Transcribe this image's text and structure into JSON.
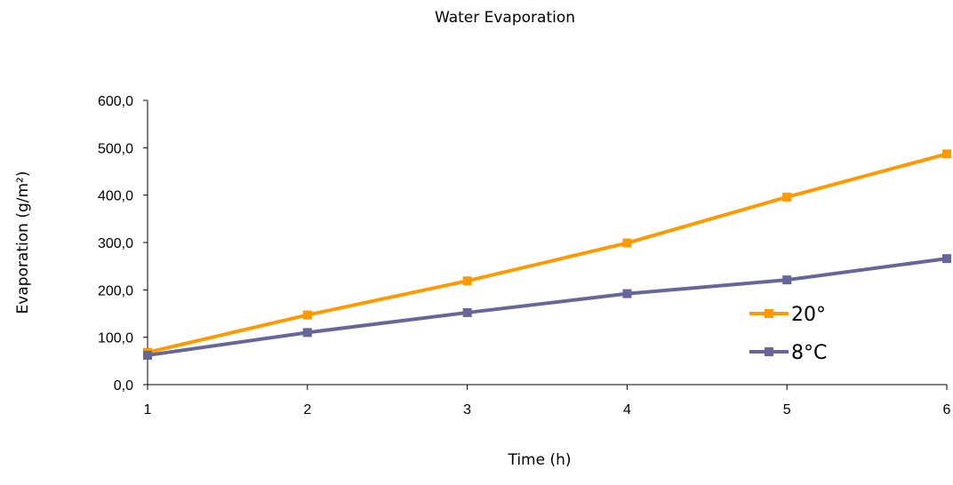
{
  "chart_data": {
    "type": "line",
    "title": "Water Evaporation",
    "xlabel": "Time (h)",
    "ylabel": "Evaporation (g/m²)",
    "x": [
      1,
      2,
      3,
      4,
      5,
      6
    ],
    "x_tick_labels": [
      "1",
      "2",
      "3",
      "4",
      "5",
      "6"
    ],
    "ylim": [
      0,
      600
    ],
    "y_ticks": [
      0,
      100,
      200,
      300,
      400,
      500,
      600
    ],
    "y_tick_labels": [
      "0,0",
      "100,0",
      "200,0",
      "300,0",
      "400,0",
      "500,0",
      "600,0"
    ],
    "grid": false,
    "legend_position": "right",
    "series": [
      {
        "name": "20°",
        "color": "#FF9900",
        "marker": "square",
        "values": [
          68,
          147,
          219,
          299,
          396,
          487
        ]
      },
      {
        "name": "8°C",
        "color": "#666699",
        "marker": "square",
        "values": [
          62,
          110,
          152,
          192,
          221,
          266
        ]
      }
    ]
  }
}
